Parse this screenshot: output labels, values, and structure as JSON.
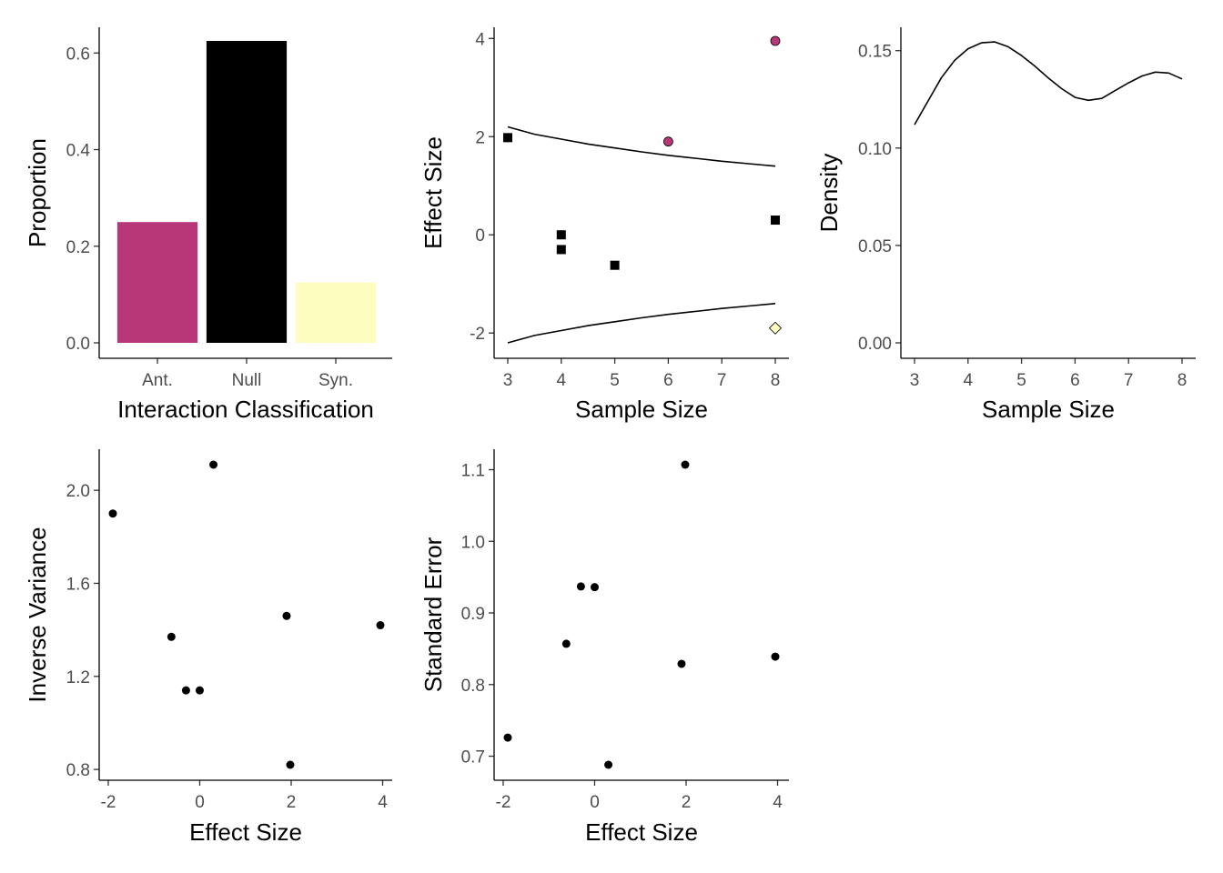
{
  "chart_data": [
    {
      "id": "bar",
      "type": "bar",
      "categories": [
        "Ant.",
        "Null",
        "Syn."
      ],
      "values": [
        0.25,
        0.625,
        0.125
      ],
      "colors": [
        "#b73779",
        "#000000",
        "#fcfdbf"
      ],
      "xlabel": "Interaction Classification",
      "ylabel": "Proportion",
      "ylim": [
        0,
        0.625
      ],
      "yticks": [
        0.0,
        0.2,
        0.4,
        0.6
      ],
      "ytick_labels": [
        "0.0",
        "0.2",
        "0.4",
        "0.6"
      ],
      "grid": false
    },
    {
      "id": "funnel",
      "type": "scatter",
      "xlabel": "Sample Size",
      "ylabel": "Effect Size",
      "xlim": [
        3,
        8
      ],
      "ylim": [
        -2.2,
        3.95
      ],
      "xticks": [
        3,
        4,
        5,
        6,
        7,
        8
      ],
      "xtick_labels": [
        "3",
        "4",
        "5",
        "6",
        "7",
        "8"
      ],
      "yticks": [
        -2,
        0,
        2,
        4
      ],
      "ytick_labels": [
        "-2",
        "0",
        "2",
        "4"
      ],
      "points": [
        {
          "x": 3,
          "y": 1.98,
          "class": "Null"
        },
        {
          "x": 4,
          "y": 0.0,
          "class": "Null"
        },
        {
          "x": 4,
          "y": -0.3,
          "class": "Null"
        },
        {
          "x": 5,
          "y": -0.62,
          "class": "Null"
        },
        {
          "x": 8,
          "y": 0.3,
          "class": "Null"
        },
        {
          "x": 6,
          "y": 1.9,
          "class": "Ant."
        },
        {
          "x": 8,
          "y": 3.95,
          "class": "Ant."
        },
        {
          "x": 8,
          "y": -1.9,
          "class": "Syn."
        }
      ],
      "class_styles": {
        "Null": {
          "shape": "square",
          "color": "#000000"
        },
        "Ant.": {
          "shape": "circle",
          "color": "#b73779"
        },
        "Syn.": {
          "shape": "diamond",
          "color": "#fcfdbf"
        }
      },
      "funnel_bounds": {
        "x": [
          3,
          3.5,
          4,
          4.5,
          5,
          5.5,
          6,
          6.5,
          7,
          7.5,
          8
        ],
        "upper": [
          2.2,
          2.05,
          1.95,
          1.85,
          1.77,
          1.69,
          1.62,
          1.56,
          1.5,
          1.45,
          1.4
        ],
        "lower": [
          -2.2,
          -2.05,
          -1.95,
          -1.85,
          -1.77,
          -1.69,
          -1.62,
          -1.56,
          -1.5,
          -1.45,
          -1.4
        ]
      },
      "grid": false
    },
    {
      "id": "density",
      "type": "line",
      "xlabel": "Sample Size",
      "ylabel": "Density",
      "xlim": [
        3,
        8
      ],
      "ylim": [
        0,
        0.155
      ],
      "xticks": [
        3,
        4,
        5,
        6,
        7,
        8
      ],
      "xtick_labels": [
        "3",
        "4",
        "5",
        "6",
        "7",
        "8"
      ],
      "yticks": [
        0.0,
        0.05,
        0.1,
        0.15
      ],
      "ytick_labels": [
        "0.00",
        "0.05",
        "0.10",
        "0.15"
      ],
      "x": [
        3.0,
        3.25,
        3.5,
        3.75,
        4.0,
        4.25,
        4.5,
        4.75,
        5.0,
        5.25,
        5.5,
        5.75,
        6.0,
        6.25,
        6.5,
        6.75,
        7.0,
        7.25,
        7.5,
        7.75,
        8.0
      ],
      "y": [
        0.112,
        0.124,
        0.136,
        0.145,
        0.151,
        0.154,
        0.1545,
        0.152,
        0.1475,
        0.142,
        0.136,
        0.1305,
        0.126,
        0.1245,
        0.1255,
        0.1295,
        0.1335,
        0.137,
        0.139,
        0.1385,
        0.1355
      ],
      "grid": false
    },
    {
      "id": "invvar",
      "type": "scatter",
      "xlabel": "Effect Size",
      "ylabel": "Inverse Variance",
      "xlim": [
        -1.9,
        3.95
      ],
      "ylim": [
        0.82,
        2.11
      ],
      "xticks": [
        -2,
        0,
        2,
        4
      ],
      "xtick_labels": [
        "-2",
        "0",
        "2",
        "4"
      ],
      "yticks": [
        0.8,
        1.2,
        1.6,
        2.0
      ],
      "ytick_labels": [
        "0.8",
        "1.2",
        "1.6",
        "2.0"
      ],
      "points": [
        {
          "x": -1.9,
          "y": 1.9
        },
        {
          "x": -0.62,
          "y": 1.37
        },
        {
          "x": -0.3,
          "y": 1.14
        },
        {
          "x": 0.0,
          "y": 1.14
        },
        {
          "x": 0.3,
          "y": 2.11
        },
        {
          "x": 1.9,
          "y": 1.46
        },
        {
          "x": 1.98,
          "y": 0.82
        },
        {
          "x": 3.95,
          "y": 1.42
        }
      ],
      "grid": false
    },
    {
      "id": "stderr",
      "type": "scatter",
      "xlabel": "Effect Size",
      "ylabel": "Standard Error",
      "xlim": [
        -1.9,
        3.95
      ],
      "ylim": [
        0.688,
        1.107
      ],
      "xticks": [
        -2,
        0,
        2,
        4
      ],
      "xtick_labels": [
        "-2",
        "0",
        "2",
        "4"
      ],
      "yticks": [
        0.7,
        0.8,
        0.9,
        1.0,
        1.1
      ],
      "ytick_labels": [
        "0.7",
        "0.8",
        "0.9",
        "1.0",
        "1.1"
      ],
      "points": [
        {
          "x": -1.9,
          "y": 0.726
        },
        {
          "x": -0.62,
          "y": 0.857
        },
        {
          "x": -0.3,
          "y": 0.937
        },
        {
          "x": 0.0,
          "y": 0.936
        },
        {
          "x": 0.3,
          "y": 0.688
        },
        {
          "x": 1.9,
          "y": 0.829
        },
        {
          "x": 1.98,
          "y": 1.107
        },
        {
          "x": 3.95,
          "y": 0.839
        }
      ],
      "grid": false
    }
  ]
}
